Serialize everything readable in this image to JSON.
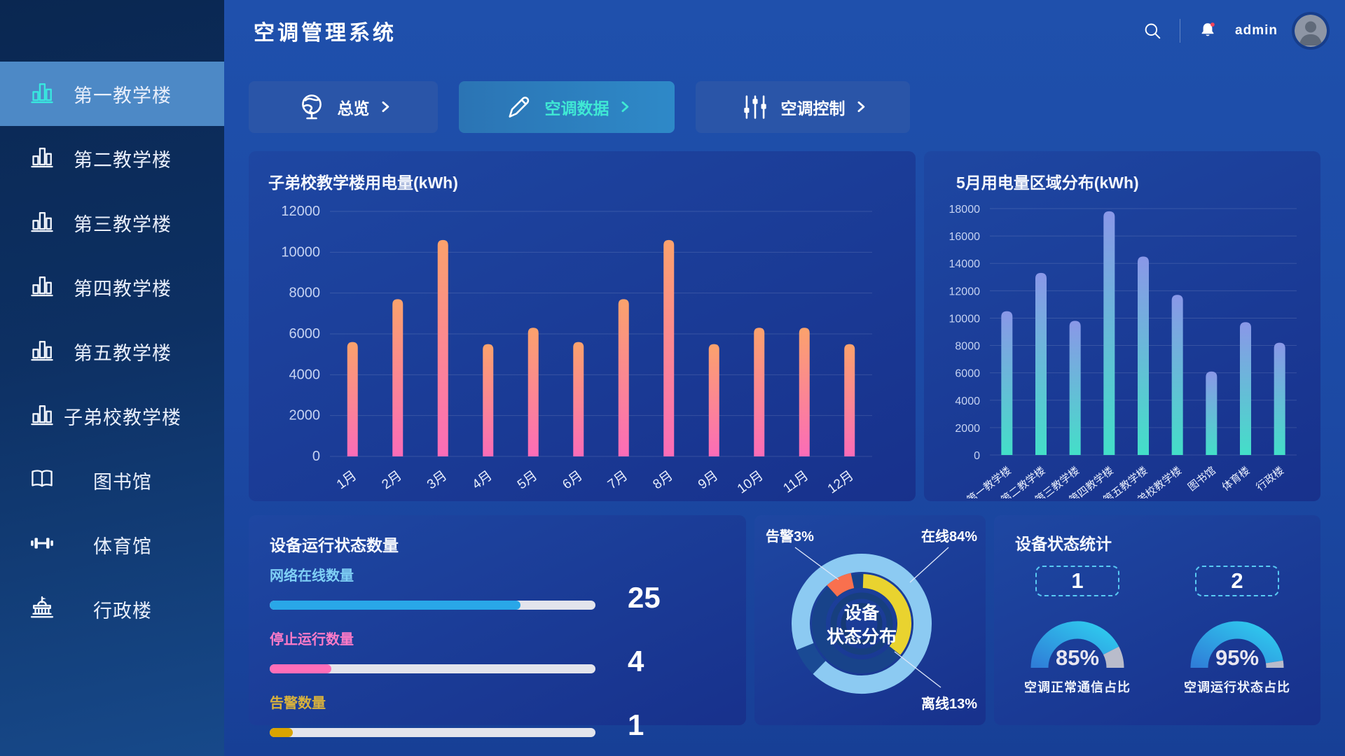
{
  "app": {
    "title": "空调管理系统"
  },
  "header": {
    "user": "admin",
    "search_icon": "search",
    "bell_icon": "bell-with-red-dot",
    "avatar_icon": "person-silhouette"
  },
  "sidebar": {
    "items": [
      {
        "label": "第一教学楼",
        "icon": "building-chart",
        "active": true
      },
      {
        "label": "第二教学楼",
        "icon": "building-chart",
        "active": false
      },
      {
        "label": "第三教学楼",
        "icon": "building-chart",
        "active": false
      },
      {
        "label": "第四教学楼",
        "icon": "building-chart",
        "active": false
      },
      {
        "label": "第五教学楼",
        "icon": "building-chart",
        "active": false
      },
      {
        "label": "子弟校教学楼",
        "icon": "building-chart",
        "active": false
      },
      {
        "label": "图书馆",
        "icon": "book",
        "active": false
      },
      {
        "label": "体育馆",
        "icon": "dumbbell",
        "active": false
      },
      {
        "label": "行政楼",
        "icon": "government",
        "active": false
      }
    ]
  },
  "tabs": [
    {
      "label": "总览",
      "icon": "globe",
      "active": false
    },
    {
      "label": "空调数据",
      "icon": "pencil",
      "active": true
    },
    {
      "label": "空调控制",
      "icon": "sliders",
      "active": false
    }
  ],
  "chart_data": [
    {
      "id": "monthly-usage",
      "type": "bar",
      "title": "子弟校教学楼用电量(kWh)",
      "categories": [
        "1月",
        "2月",
        "3月",
        "4月",
        "5月",
        "6月",
        "7月",
        "8月",
        "9月",
        "10月",
        "11月",
        "12月"
      ],
      "values": [
        5600,
        7700,
        10600,
        5500,
        6300,
        5600,
        7700,
        10600,
        5500,
        6300,
        6300,
        5500
      ],
      "ylim": [
        0,
        12000
      ],
      "ytick_step": 2000,
      "yticks": [
        "0",
        "2000",
        "4000",
        "6000",
        "8000",
        "10000",
        "12000"
      ],
      "grid": true,
      "legend": "none",
      "bar_gradient_top": "#FBA26C",
      "bar_gradient_bottom": "#FB6CB8"
    },
    {
      "id": "may-region-usage",
      "type": "bar",
      "title": "5月用电量区域分布(kWh)",
      "categories": [
        "第一教学楼",
        "第二教学楼",
        "第三教学楼",
        "第四教学楼",
        "第五教学楼",
        "子弟校教学楼",
        "图书馆",
        "体育楼",
        "行政楼"
      ],
      "values": [
        10500,
        13300,
        9800,
        17800,
        14500,
        11700,
        6100,
        9700,
        8200
      ],
      "ylim": [
        0,
        18000
      ],
      "ytick_step": 2000,
      "yticks": [
        "0",
        "2000",
        "4000",
        "6000",
        "8000",
        "10000",
        "12000",
        "14000",
        "16000",
        "18000"
      ],
      "grid": true,
      "legend": "none",
      "bar_gradient_top": "#8A97E8",
      "bar_gradient_bottom": "#43DFC8"
    },
    {
      "id": "device-status-counts",
      "type": "bar",
      "title": "设备运行状态数量",
      "items": [
        {
          "label": "网络在线数量",
          "value": "25",
          "percent": 77,
          "color": "#29A7E8",
          "label_color": "#7FD0F5"
        },
        {
          "label": "停止运行数量",
          "value": "4",
          "percent": 19,
          "color": "#FF6EB8",
          "label_color": "#FF7BC8"
        },
        {
          "label": "告警数量",
          "value": "1",
          "percent": 7,
          "color": "#D9A400",
          "label_color": "#D9B23C"
        }
      ]
    },
    {
      "id": "device-status-distribution",
      "type": "pie",
      "center_label": [
        "设备",
        "状态分布"
      ],
      "slices": [
        {
          "key": "online",
          "label": "在线",
          "percent": 84,
          "display": "在线84%",
          "color": "#8CCAF2"
        },
        {
          "key": "offline",
          "label": "离线",
          "percent": 13,
          "display": "离线13%",
          "color": "#E9D32F"
        },
        {
          "key": "alarm",
          "label": "告警",
          "percent": 3,
          "display": "告警3%",
          "color": "#F9704E"
        }
      ]
    },
    {
      "id": "device-status-stats",
      "type": "gauge",
      "title": "设备状态统计",
      "badges": [
        "1",
        "2"
      ],
      "gauges": [
        {
          "label": "空调正常通信占比",
          "percent": 85,
          "percent_label": "85%"
        },
        {
          "label": "空调运行状态占比",
          "percent": 95,
          "percent_label": "95%"
        }
      ],
      "gauge_colors": {
        "start": "#2F7FD8",
        "end": "#2FC9EE",
        "rest": "#B9BCCB"
      }
    }
  ]
}
